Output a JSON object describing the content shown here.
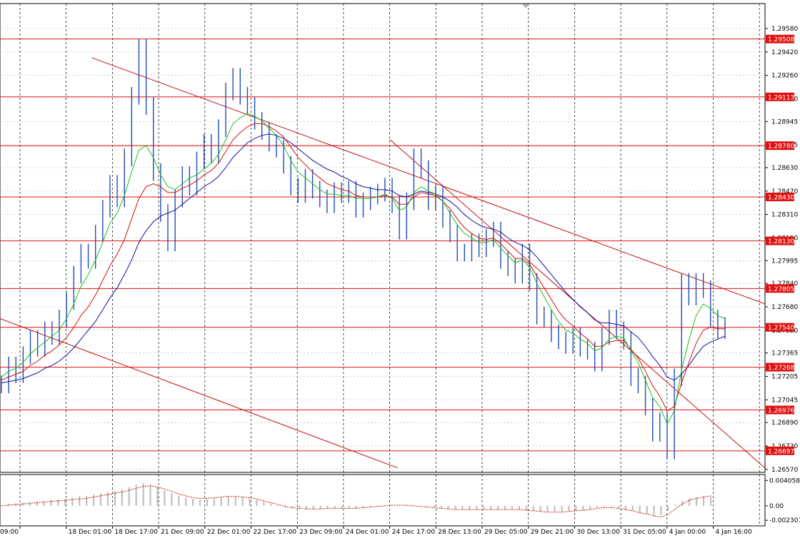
{
  "chart_data": {
    "type": "line",
    "title": "",
    "main": {
      "price_axis_ticks": [
        "1.29580",
        "1.29420",
        "1.29260",
        "1.29100",
        "1.28945",
        "1.28785",
        "1.28630",
        "1.28470",
        "1.28310",
        "1.28150",
        "1.27995",
        "1.27840",
        "1.27680",
        "1.27520",
        "1.27365",
        "1.27205",
        "1.27045",
        "1.26890",
        "1.26730",
        "1.26570"
      ],
      "ylim": [
        1.2655,
        1.2975
      ],
      "levels": [
        {
          "label": "1.29508",
          "value": 1.29508
        },
        {
          "label": "1.29113",
          "value": 1.29113
        },
        {
          "label": "1.28780",
          "value": 1.2878
        },
        {
          "label": "1.28430",
          "value": 1.2843
        },
        {
          "label": "1.28130",
          "value": 1.2813
        },
        {
          "label": "1.27805",
          "value": 1.27805
        },
        {
          "label": "1.27540",
          "value": 1.2754
        },
        {
          "label": "1.27268",
          "value": 1.27268
        },
        {
          "label": "1.26976",
          "value": 1.26976
        },
        {
          "label": "1.26697",
          "value": 1.26697
        }
      ],
      "time_labels": [
        "09:00",
        "18 Dec 01:00",
        "18 Dec 17:00",
        "21 Dec 09:00",
        "22 Dec 01:00",
        "22 Dec 17:00",
        "23 Dec 09:00",
        "24 Dec 01:00",
        "24 Dec 17:00",
        "28 Dec 13:00",
        "29 Dec 05:00",
        "29 Dec 21:00",
        "30 Dec 13:00",
        "31 Dec 05:00",
        "4 Jan 00:00",
        "4 Jan 16:00"
      ],
      "price": [
        1.2715,
        1.2728,
        1.2722,
        1.2735,
        1.2746,
        1.274,
        1.2752,
        1.2748,
        1.276,
        1.2772,
        1.279,
        1.2805,
        1.28,
        1.2818,
        1.2835,
        1.2852,
        1.2842,
        1.287,
        1.2912,
        1.2945,
        1.2905,
        1.286,
        1.2832,
        1.2812,
        1.2842,
        1.2858,
        1.285,
        1.2868,
        1.288,
        1.2872,
        1.289,
        1.2915,
        1.2925,
        1.2912,
        1.2905,
        1.2895,
        1.2888,
        1.288,
        1.2876,
        1.2865,
        1.285,
        1.2845,
        1.2856,
        1.2848,
        1.2842,
        1.2838,
        1.2847,
        1.2845,
        1.2848,
        1.2835,
        1.284,
        1.2844,
        1.2846,
        1.285,
        1.2838,
        1.282,
        1.284,
        1.287,
        1.2862,
        1.284,
        1.2845,
        1.2828,
        1.2818,
        1.2805,
        1.2805,
        1.2812,
        1.2808,
        1.2815,
        1.282,
        1.28,
        1.2795,
        1.279,
        1.2805,
        1.2785,
        1.2762,
        1.276,
        1.275,
        1.2745,
        1.2742,
        1.2748,
        1.274,
        1.2738,
        1.273,
        1.2748,
        1.276,
        1.2752,
        1.2745,
        1.272,
        1.2715,
        1.27,
        1.2682,
        1.269,
        1.267,
        1.272,
        1.2785,
        1.2775,
        1.2785,
        1.278,
        1.276,
        1.2752,
        1.2755
      ],
      "ma_fast": [
        1.272,
        1.2724,
        1.2726,
        1.273,
        1.2736,
        1.274,
        1.2744,
        1.2748,
        1.2752,
        1.276,
        1.277,
        1.2782,
        1.279,
        1.28,
        1.2812,
        1.2825,
        1.2832,
        1.2844,
        1.286,
        1.2875,
        1.2878,
        1.287,
        1.2858,
        1.285,
        1.2848,
        1.2852,
        1.2856,
        1.2858,
        1.2862,
        1.2866,
        1.2872,
        1.2882,
        1.2893,
        1.2897,
        1.29,
        1.2898,
        1.2895,
        1.289,
        1.2885,
        1.2878,
        1.2868,
        1.286,
        1.2856,
        1.2852,
        1.2848,
        1.2845,
        1.2845,
        1.2844,
        1.2844,
        1.2842,
        1.2842,
        1.2842,
        1.2843,
        1.2845,
        1.2842,
        1.2834,
        1.2836,
        1.2846,
        1.285,
        1.2847,
        1.2845,
        1.284,
        1.2832,
        1.2824,
        1.2818,
        1.2815,
        1.2812,
        1.2812,
        1.2814,
        1.2808,
        1.2803,
        1.2798,
        1.28,
        1.2795,
        1.2784,
        1.2775,
        1.2766,
        1.2758,
        1.2752,
        1.275,
        1.2746,
        1.2743,
        1.2738,
        1.274,
        1.2746,
        1.2748,
        1.2747,
        1.2738,
        1.273,
        1.2718,
        1.2706,
        1.27,
        1.2688,
        1.2697,
        1.2725,
        1.2745,
        1.2762,
        1.277,
        1.2767,
        1.2762,
        1.276
      ],
      "ma_mid": [
        1.2718,
        1.272,
        1.2722,
        1.2724,
        1.2728,
        1.2731,
        1.2735,
        1.2738,
        1.2742,
        1.2747,
        1.2754,
        1.2762,
        1.2768,
        1.2776,
        1.2786,
        1.2796,
        1.2804,
        1.2814,
        1.2828,
        1.2842,
        1.285,
        1.2852,
        1.285,
        1.2846,
        1.2846,
        1.2849,
        1.2851,
        1.2854,
        1.2858,
        1.2861,
        1.2866,
        1.2874,
        1.2882,
        1.2887,
        1.2891,
        1.2893,
        1.2893,
        1.2891,
        1.2888,
        1.2884,
        1.2877,
        1.287,
        1.2865,
        1.286,
        1.2856,
        1.2852,
        1.285,
        1.2848,
        1.2847,
        1.2844,
        1.2843,
        1.2843,
        1.2843,
        1.2844,
        1.2843,
        1.2838,
        1.2838,
        1.2843,
        1.2846,
        1.2845,
        1.2844,
        1.284,
        1.2835,
        1.2828,
        1.2822,
        1.2818,
        1.2815,
        1.2814,
        1.2815,
        1.2811,
        1.2806,
        1.2801,
        1.2801,
        1.2797,
        1.2789,
        1.2781,
        1.2773,
        1.2765,
        1.2759,
        1.2755,
        1.275,
        1.2746,
        1.2741,
        1.2741,
        1.2744,
        1.2745,
        1.2745,
        1.2739,
        1.2733,
        1.2724,
        1.2714,
        1.2707,
        1.2697,
        1.27,
        1.2716,
        1.273,
        1.2743,
        1.2752,
        1.2754,
        1.2753,
        1.2753
      ],
      "ma_slow": [
        1.2716,
        1.2717,
        1.2718,
        1.2719,
        1.2721,
        1.2723,
        1.2726,
        1.2728,
        1.2731,
        1.2735,
        1.274,
        1.2746,
        1.2752,
        1.2758,
        1.2766,
        1.2774,
        1.2781,
        1.279,
        1.28,
        1.2812,
        1.282,
        1.2826,
        1.283,
        1.2832,
        1.2834,
        1.2838,
        1.2842,
        1.2846,
        1.285,
        1.2853,
        1.2857,
        1.2863,
        1.287,
        1.2875,
        1.288,
        1.2883,
        1.2885,
        1.2886,
        1.2885,
        1.2883,
        1.288,
        1.2876,
        1.2872,
        1.2868,
        1.2865,
        1.2862,
        1.286,
        1.2857,
        1.2855,
        1.2852,
        1.285,
        1.2849,
        1.2848,
        1.2848,
        1.2847,
        1.2844,
        1.2843,
        1.2845,
        1.2847,
        1.2846,
        1.2845,
        1.2843,
        1.284,
        1.2836,
        1.2831,
        1.2827,
        1.2824,
        1.2822,
        1.2821,
        1.2819,
        1.2815,
        1.2812,
        1.281,
        1.2807,
        1.2802,
        1.2796,
        1.279,
        1.2784,
        1.2778,
        1.2773,
        1.2768,
        1.2764,
        1.2759,
        1.2757,
        1.2757,
        1.2756,
        1.2755,
        1.2751,
        1.2747,
        1.2741,
        1.2734,
        1.2728,
        1.272,
        1.2718,
        1.2722,
        1.2728,
        1.2735,
        1.2741,
        1.2744,
        1.2746,
        1.2748
      ],
      "trendlines": [
        {
          "from": [
            0.12,
            1.2938
          ],
          "to": [
            1.0,
            1.277
          ]
        },
        {
          "from": [
            0.51,
            1.2882
          ],
          "to": [
            1.0,
            1.2658
          ]
        },
        {
          "from": [
            0.0,
            1.276
          ],
          "to": [
            0.52,
            1.2658
          ]
        }
      ]
    },
    "oscillator": {
      "ticks": [
        "0.004058",
        "0.00",
        "-0.002307"
      ],
      "ylim": [
        -0.0032,
        0.005
      ],
      "histogram": [
        0.0001,
        0.0003,
        0.0004,
        0.0005,
        0.0006,
        0.0007,
        0.0008,
        0.0009,
        0.001,
        0.0011,
        0.0013,
        0.0015,
        0.0016,
        0.0018,
        0.002,
        0.0022,
        0.0024,
        0.0026,
        0.003,
        0.0034,
        0.0036,
        0.0034,
        0.003,
        0.0025,
        0.002,
        0.0016,
        0.0013,
        0.0011,
        0.001,
        0.0011,
        0.0012,
        0.0014,
        0.0015,
        0.0015,
        0.0014,
        0.0012,
        0.001,
        0.0007,
        0.0004,
        0.0001,
        -0.0002,
        -0.0004,
        -0.0005,
        -0.0005,
        -0.0005,
        -0.0005,
        -0.0004,
        -0.0004,
        -0.0004,
        -0.0004,
        -0.0004,
        -0.0003,
        -0.0002,
        -0.0001,
        0.0,
        0.0001,
        0.0001,
        0.0001,
        0.0,
        -0.0001,
        -0.0002,
        -0.0003,
        -0.0004,
        -0.0005,
        -0.0006,
        -0.0006,
        -0.0006,
        -0.0006,
        -0.0006,
        -0.0006,
        -0.0006,
        -0.0006,
        -0.0006,
        -0.0006,
        -0.0007,
        -0.0008,
        -0.0009,
        -0.001,
        -0.001,
        -0.001,
        -0.0009,
        -0.0008,
        -0.0007,
        -0.0005,
        -0.0003,
        -0.0002,
        -0.0002,
        -0.0004,
        -0.0006,
        -0.0008,
        -0.0011,
        -0.0013,
        -0.0016,
        -0.0015,
        -0.0008,
        0.0002,
        0.0008,
        0.0012,
        0.0014,
        0.0015,
        0.0015
      ],
      "signal": [
        0.0,
        0.0001,
        0.0002,
        0.0003,
        0.0004,
        0.0005,
        0.0006,
        0.0007,
        0.0008,
        0.0009,
        0.001,
        0.0011,
        0.0012,
        0.0014,
        0.0016,
        0.0018,
        0.002,
        0.0022,
        0.0025,
        0.0028,
        0.0031,
        0.0032,
        0.003,
        0.0027,
        0.0023,
        0.0019,
        0.0016,
        0.0013,
        0.0012,
        0.0012,
        0.0013,
        0.0014,
        0.0015,
        0.0015,
        0.0014,
        0.0013,
        0.0011,
        0.0008,
        0.0005,
        0.0002,
        -0.0001,
        -0.0003,
        -0.0004,
        -0.0005,
        -0.0005,
        -0.0005,
        -0.0004,
        -0.0004,
        -0.0004,
        -0.0004,
        -0.0004,
        -0.0003,
        -0.0002,
        -0.0001,
        0.0,
        0.0001,
        0.0001,
        0.0001,
        0.0,
        -0.0001,
        -0.0002,
        -0.0003,
        -0.0004,
        -0.0005,
        -0.0006,
        -0.0006,
        -0.0006,
        -0.0006,
        -0.0006,
        -0.0006,
        -0.0006,
        -0.0006,
        -0.0006,
        -0.0006,
        -0.0007,
        -0.0008,
        -0.0009,
        -0.001,
        -0.001,
        -0.001,
        -0.0009,
        -0.0008,
        -0.0007,
        -0.0006,
        -0.0004,
        -0.0003,
        -0.0003,
        -0.0004,
        -0.0006,
        -0.0008,
        -0.0011,
        -0.0013,
        -0.0016,
        -0.0018,
        -0.0014,
        -0.0005,
        0.0003,
        0.0009,
        0.0012,
        0.0014,
        0.0016
      ]
    }
  },
  "colors": {
    "price": "#1f4fb4",
    "ma_fast": "#1fbf1f",
    "ma_mid": "#d01010",
    "ma_slow": "#1010a0",
    "level": "#e01010",
    "trend": "#c01010",
    "level_label_bg": "#e01010",
    "grid": "#9a9a9a",
    "histogram": "#c0c0c0",
    "signal": "#d01010"
  }
}
